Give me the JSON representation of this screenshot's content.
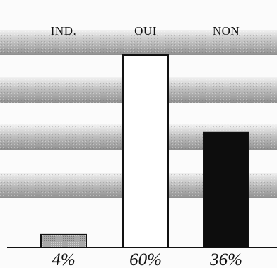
{
  "chart_data": {
    "type": "bar",
    "categories": [
      "IND.",
      "OUI",
      "NON"
    ],
    "values": [
      4,
      60,
      36
    ],
    "value_labels": [
      "4%",
      "60%",
      "36%"
    ],
    "ylim": [
      0,
      67
    ],
    "colors": [
      "#aaaaaa",
      "#ffffff",
      "#0d0d0d"
    ],
    "grid": true,
    "legend": "none"
  }
}
